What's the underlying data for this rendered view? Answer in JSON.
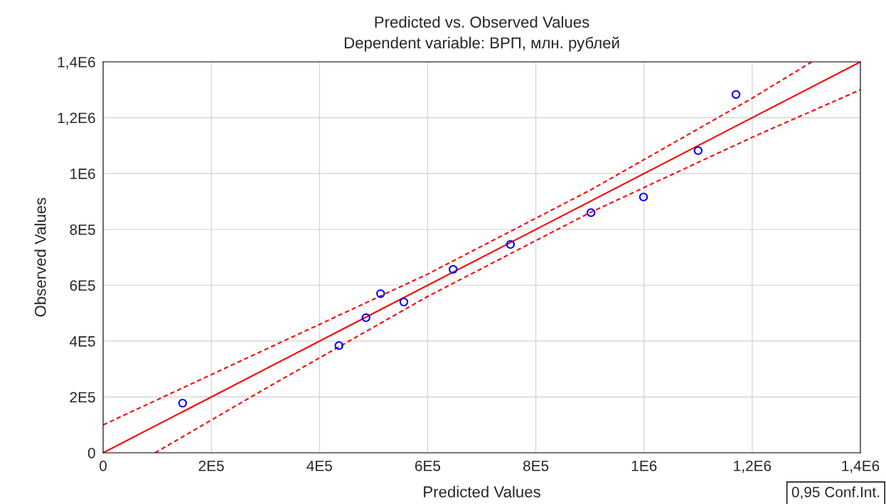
{
  "chart_data": {
    "type": "scatter",
    "title": "Predicted vs. Observed Values",
    "subtitle": "Dependent variable: ВРП, млн. рублей",
    "xlabel": "Predicted Values",
    "ylabel": "Observed Values",
    "xlim": [
      0,
      1400000
    ],
    "ylim": [
      0,
      1400000
    ],
    "xticks": [
      0,
      {
        "value": 200000,
        "label": "2E5"
      },
      {
        "value": 400000,
        "label": "4E5"
      },
      {
        "value": 600000,
        "label": "6E5"
      },
      {
        "value": 800000,
        "label": "8E5"
      },
      {
        "value": 1000000,
        "label": "1E6"
      },
      {
        "value": 1200000,
        "label": "1,2E6"
      },
      {
        "value": 1400000,
        "label": "1,4E6"
      }
    ],
    "yticks": [
      0,
      {
        "value": 200000,
        "label": "2E5"
      },
      {
        "value": 400000,
        "label": "4E5"
      },
      {
        "value": 600000,
        "label": "6E5"
      },
      {
        "value": 800000,
        "label": "8E5"
      },
      {
        "value": 1000000,
        "label": "1E6"
      },
      {
        "value": 1200000,
        "label": "1,2E6"
      },
      {
        "value": 1400000,
        "label": "1,4E6"
      }
    ],
    "grid": true,
    "series": [
      {
        "marker": "circle",
        "color": "#0000ff",
        "x": [
          147000,
          436000,
          486000,
          513000,
          556000,
          647000,
          753000,
          902000,
          999000,
          1100000,
          1170000
        ],
        "values": [
          178000,
          384000,
          484000,
          570000,
          540000,
          657000,
          746000,
          860000,
          916000,
          1082000,
          1283000
        ]
      },
      {
        "type": "line",
        "color": "#ff0000",
        "line_style": "solid",
        "x": [
          0,
          1400000
        ],
        "values": [
          0,
          1400000
        ]
      },
      {
        "type": "line",
        "color": "#ff0000",
        "line_style": "dashed",
        "x": [
          0,
          300000,
          600000,
          900000,
          1200000,
          1310000
        ],
        "values": [
          100000,
          370000,
          640000,
          940000,
          1270000,
          1400000
        ]
      },
      {
        "type": "line",
        "color": "#ff0000",
        "line_style": "dashed",
        "x": [
          96000,
          300000,
          600000,
          900000,
          1200000,
          1400000
        ],
        "values": [
          0,
          230000,
          560000,
          860000,
          1130000,
          1300000
        ]
      }
    ],
    "annotations": [
      "0,95 Conf.Int."
    ]
  }
}
